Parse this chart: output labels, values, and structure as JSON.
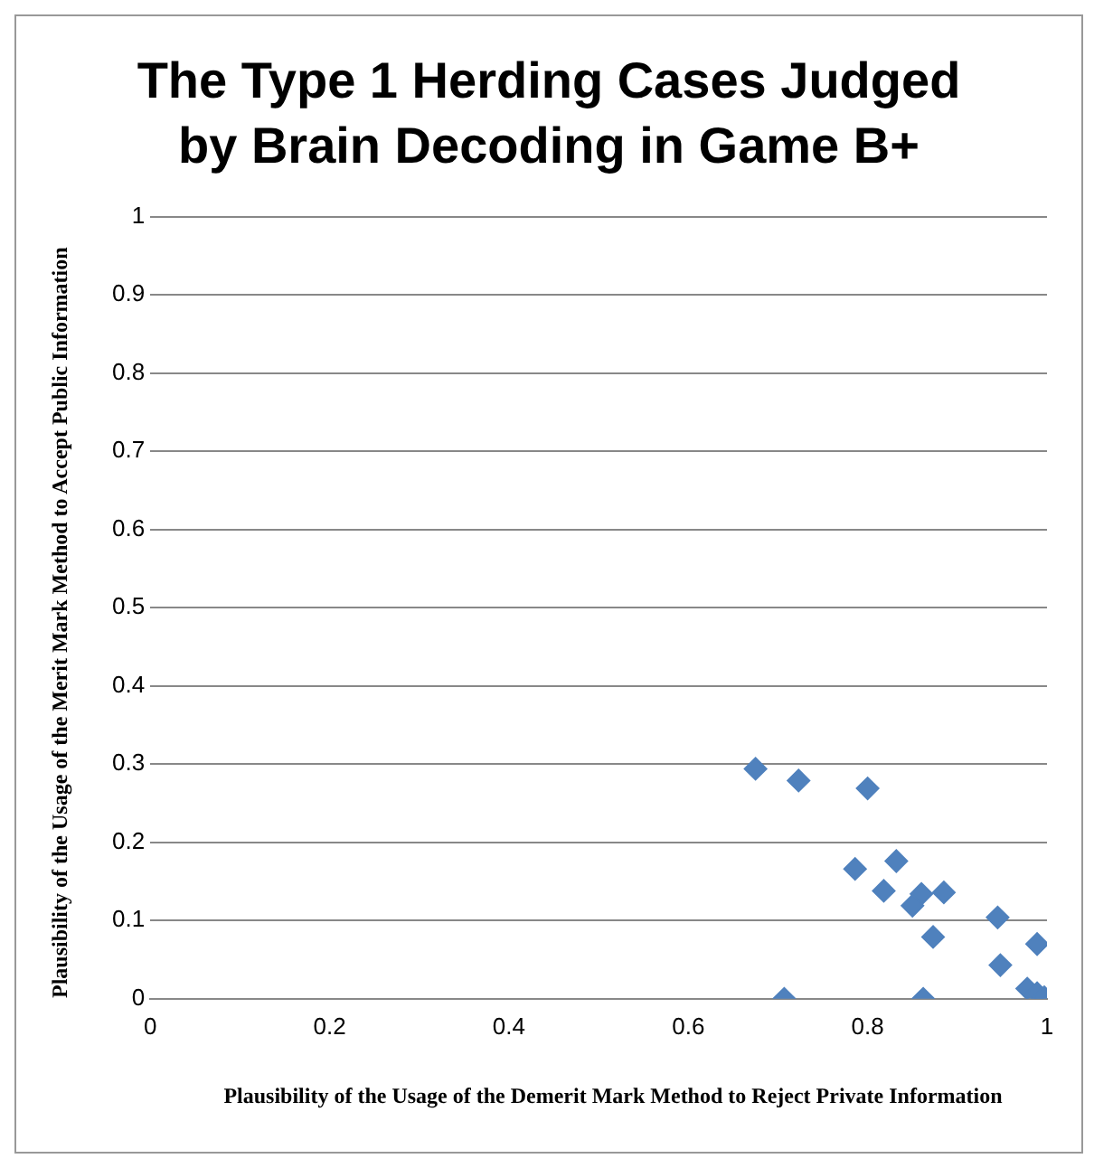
{
  "chart_data": {
    "type": "scatter",
    "title": "The Type 1 Herding Cases Judged by Brain Decoding in Game B+",
    "xlabel": "Plausibility of the Usage of the Demerit Mark Method to Reject Private Information",
    "ylabel": "Plausibility of the Usage of the Merit Mark Method to Accept Public Information",
    "x": [
      0.675,
      0.723,
      0.8,
      0.786,
      0.832,
      0.818,
      0.86,
      0.85,
      0.885,
      0.945,
      0.873,
      0.989,
      0.948,
      0.978,
      0.989,
      0.997,
      0.707,
      0.862
    ],
    "values": [
      0.294,
      0.279,
      0.269,
      0.166,
      0.176,
      0.138,
      0.134,
      0.119,
      0.136,
      0.104,
      0.079,
      0.07,
      0.043,
      0.013,
      0.007,
      0.002,
      0,
      0
    ],
    "color": "#4f81bd",
    "marker": "diamond",
    "grid": "y",
    "legend": false,
    "xlim": [
      0,
      1
    ],
    "xticks": [
      0,
      0.2,
      0.4,
      0.6,
      0.8,
      1
    ],
    "ylim": [
      0,
      1
    ],
    "yticks": [
      0,
      0.1,
      0.2,
      0.3,
      0.4,
      0.5,
      0.6,
      0.7,
      0.8,
      0.9,
      1
    ]
  }
}
